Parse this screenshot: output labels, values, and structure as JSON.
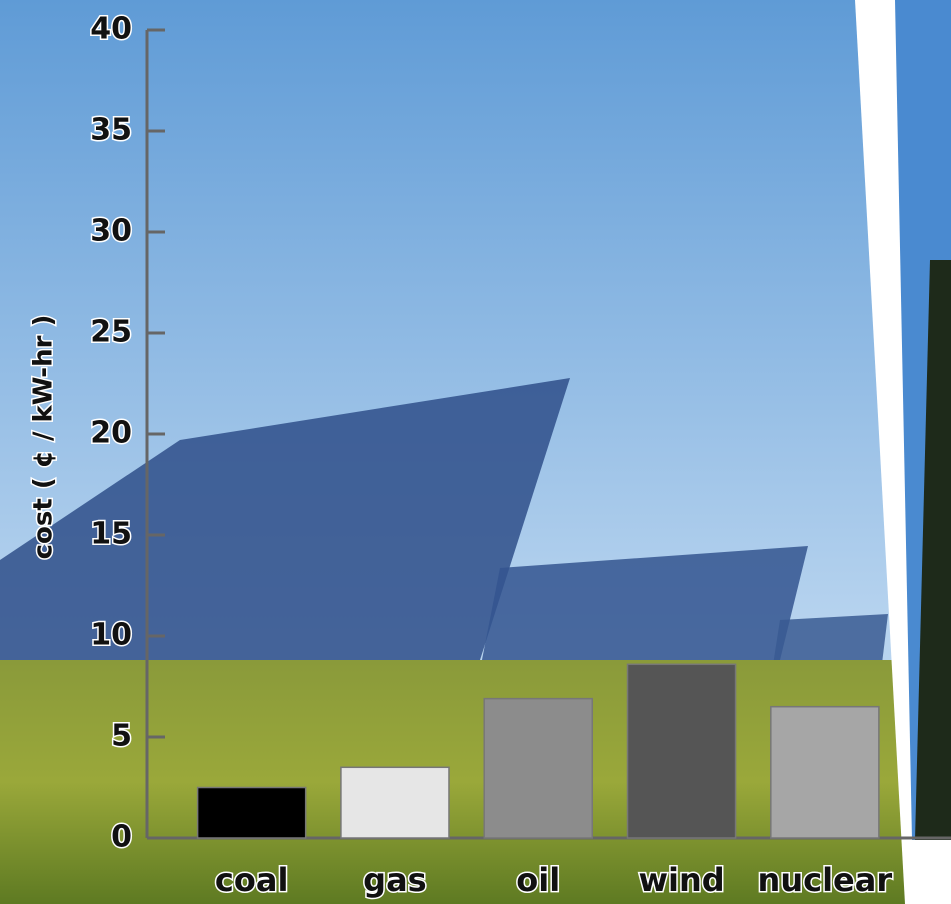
{
  "chart_data": {
    "type": "bar",
    "y_label": "cost ( ¢ / kW-hr )",
    "categories": [
      "coal",
      "gas",
      "oil",
      "wind",
      "nuclear"
    ],
    "values": [
      2.5,
      3.5,
      6.9,
      8.6,
      6.5
    ],
    "colors": [
      "#000000",
      "#e6e6e6",
      "#8c8c8c",
      "#555555",
      "#a6a6a6"
    ],
    "ylim": [
      0,
      40
    ],
    "yticks": [
      0,
      5,
      10,
      15,
      20,
      25,
      30,
      35,
      40
    ]
  }
}
